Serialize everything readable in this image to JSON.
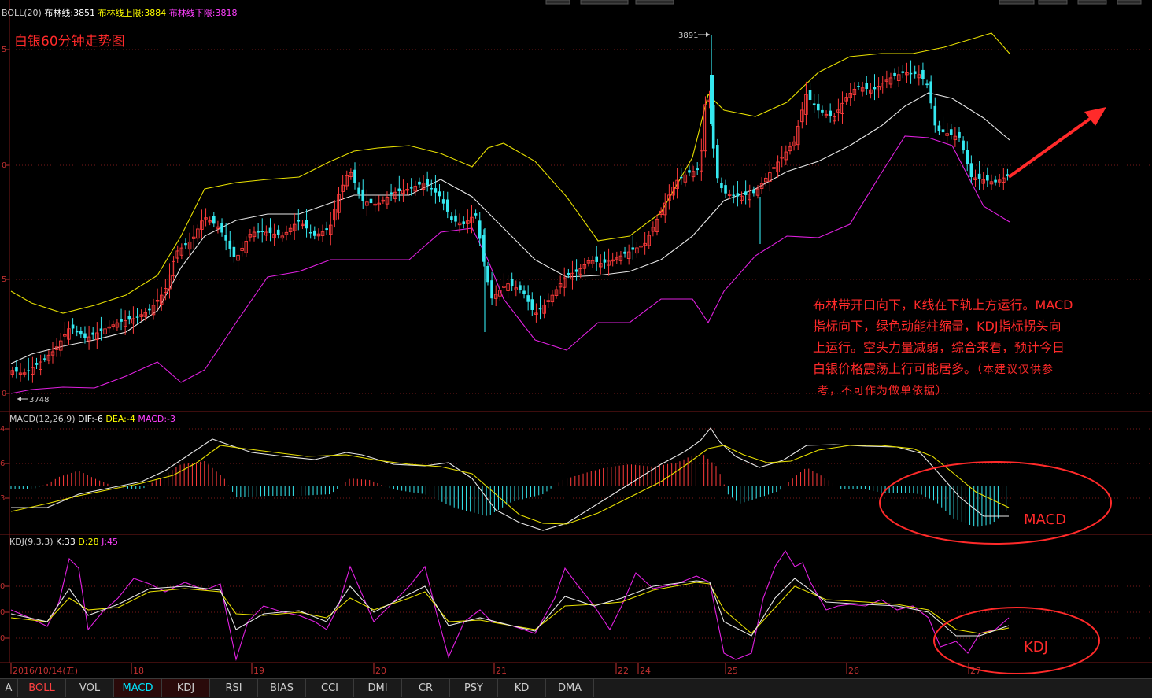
{
  "boll_header": {
    "name": "BOLL(20)",
    "mid_label": "布林线:3851",
    "upper_label": "布林线上限:3884",
    "lower_label": "布林线下限:3818"
  },
  "macd_header": {
    "name": "MACD(12,26,9)",
    "dif": "DIF:-6",
    "dea": "DEA:-4",
    "macd": "MACD:-3"
  },
  "kdj_header": {
    "name": "KDJ(9,3,3)",
    "k": "K:33",
    "d": "D:28",
    "j": "J:45"
  },
  "title": "白银60分钟走势图",
  "markers": {
    "high": "3891",
    "low": "3748"
  },
  "annotation": {
    "line1": "布林带开口向下，K线在下轨上方运行。MACD",
    "line2": "指标向下，绿色动能柱缩量，KDJ指标拐头向",
    "line3": "上运行。空头力量减弱，综合来看，预计今日",
    "line4": "白银价格震荡上行可能居多。",
    "line4b": "（本建议仅供参",
    "line5": "考，不可作为做单依据）"
  },
  "circle_labels": {
    "macd": "MACD",
    "kdj": "KDJ"
  },
  "x_axis_labels": [
    "2016/10/14(五)",
    "18",
    "19",
    "20",
    "21",
    "22",
    "24",
    "25",
    "26",
    "27"
  ],
  "tabs": [
    "A",
    "BOLL",
    "VOL",
    "MACD",
    "KDJ",
    "RSI",
    "BIAS",
    "CCI",
    "DMI",
    "CR",
    "PSY",
    "KD",
    "DMA"
  ],
  "colors": {
    "up": "#ff3b3b",
    "down": "#35e8f0",
    "boll_mid": "#e8e8e8",
    "boll_upper": "#e8e000",
    "boll_lower": "#e020e0",
    "grid": "#7a1a1a"
  },
  "chart_data": {
    "type": "candlestick",
    "instrument": "白银 60分钟",
    "high_mark": 3891,
    "low_mark": 3748,
    "series": [
      {
        "name": "布林线",
        "last": 3851
      },
      {
        "name": "布林线上限",
        "last": 3884
      },
      {
        "name": "布林线下限",
        "last": 3818
      }
    ],
    "indicators": {
      "MACD(12,26,9)": {
        "DIF": -6,
        "DEA": -4,
        "MACD": -3
      },
      "KDJ(9,3,3)": {
        "K": 33,
        "D": 28,
        "J": 45
      }
    }
  }
}
